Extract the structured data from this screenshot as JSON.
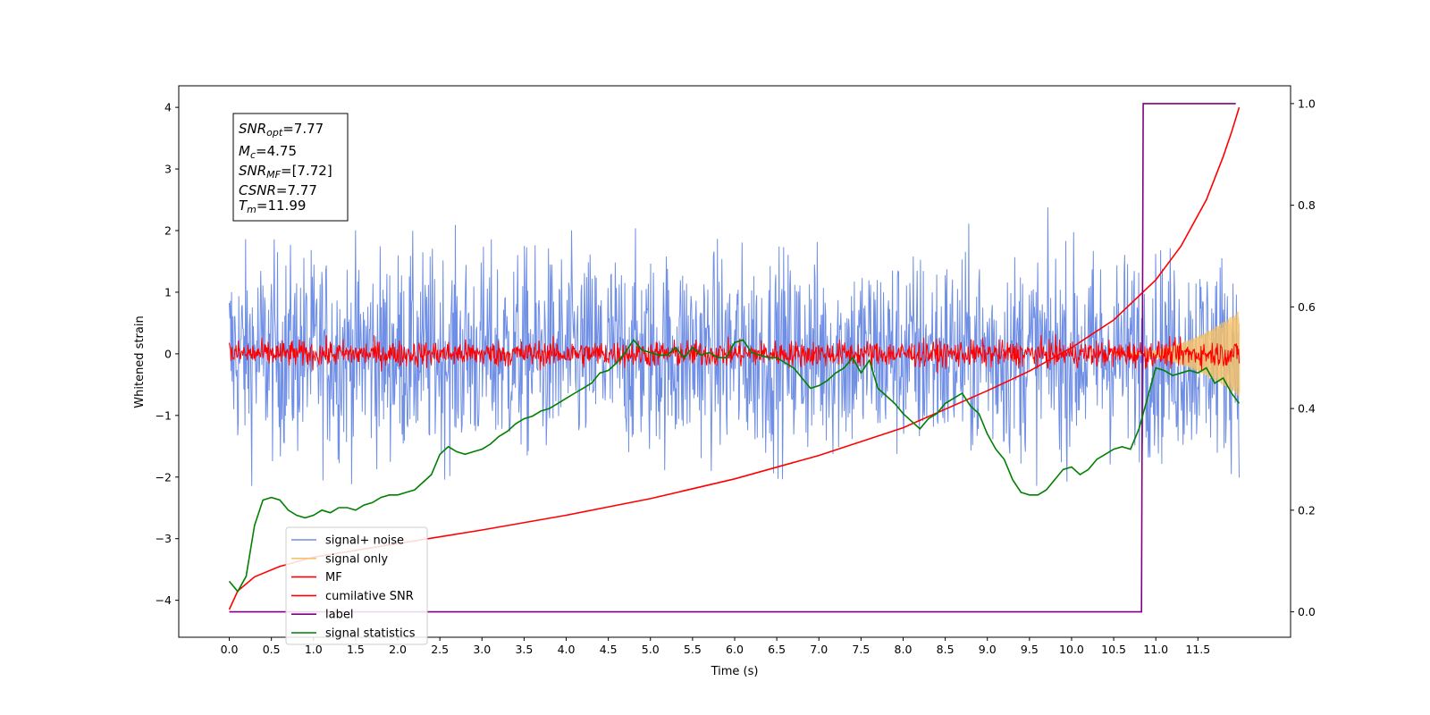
{
  "chart_data": {
    "type": "line",
    "xlabel": "Time (s)",
    "ylabel": "Whitened strain",
    "xlim": [
      -0.6,
      12.6
    ],
    "ylim": [
      -4.6,
      4.35
    ],
    "y2lim": [
      -0.05,
      1.035
    ],
    "x_ticks": [
      "0.0",
      "0.5",
      "1.0",
      "1.5",
      "2.0",
      "2.5",
      "3.0",
      "3.5",
      "4.0",
      "4.5",
      "5.0",
      "5.5",
      "6.0",
      "6.5",
      "7.0",
      "7.5",
      "8.0",
      "8.5",
      "9.0",
      "9.5",
      "10.0",
      "10.5",
      "11.0",
      "11.5"
    ],
    "y_ticks": [
      "−4",
      "−3",
      "−2",
      "−1",
      "0",
      "1",
      "2",
      "3",
      "4"
    ],
    "y2_ticks": [
      "0.0",
      "0.2",
      "0.4",
      "0.6",
      "0.8",
      "1.0"
    ],
    "annotation": {
      "lines": [
        {
          "base": "SNR",
          "sub": "opt",
          "value": "=7.77"
        },
        {
          "base": "M",
          "sub": "c",
          "value": "=4.75"
        },
        {
          "base": "SNR",
          "sub": "MF",
          "value": "=[7.72]"
        },
        {
          "base": "CSNR",
          "sub": "",
          "value": "=7.77"
        },
        {
          "base": "T",
          "sub": "m",
          "value": "=11.99"
        }
      ]
    },
    "series": [
      {
        "name": "signal+ noise",
        "color": "#6f8ee5",
        "axis": "left",
        "kind": "noise",
        "center": 0.0,
        "amplitude": 1.15,
        "x_range": [
          0.0,
          11.99
        ]
      },
      {
        "name": "signal only",
        "color": "#f5c26b",
        "axis": "left",
        "kind": "chirp",
        "x_range": [
          10.5,
          11.99
        ],
        "amplitude_end": 0.7
      },
      {
        "name": "MF",
        "color": "#ff0000",
        "axis": "left",
        "kind": "noise",
        "center": 0.0,
        "amplitude": 0.15,
        "x_range": [
          0.0,
          11.99
        ]
      },
      {
        "name": "cumilative SNR",
        "color": "#ff0000",
        "axis": "left",
        "x": [
          0.0,
          0.1,
          0.3,
          0.6,
          1.0,
          2.0,
          3.0,
          4.0,
          5.0,
          6.0,
          7.0,
          8.0,
          9.0,
          9.5,
          10.0,
          10.5,
          11.0,
          11.3,
          11.6,
          11.8,
          11.9,
          11.99
        ],
        "y": [
          -4.15,
          -3.85,
          -3.62,
          -3.45,
          -3.3,
          -3.08,
          -2.86,
          -2.62,
          -2.35,
          -2.03,
          -1.65,
          -1.2,
          -0.6,
          -0.28,
          0.1,
          0.55,
          1.2,
          1.75,
          2.5,
          3.2,
          3.6,
          4.0
        ]
      },
      {
        "name": "label",
        "color": "#800080",
        "axis": "right",
        "x": [
          0.0,
          10.83,
          10.85,
          11.95
        ],
        "y": [
          0.0,
          0.0,
          1.0,
          1.0
        ]
      },
      {
        "name": "signal statistics",
        "color": "#008000",
        "axis": "right",
        "x": [
          0.0,
          0.1,
          0.2,
          0.3,
          0.4,
          0.5,
          0.6,
          0.7,
          0.8,
          0.9,
          1.0,
          1.1,
          1.2,
          1.3,
          1.4,
          1.5,
          1.6,
          1.7,
          1.8,
          1.9,
          2.0,
          2.1,
          2.2,
          2.3,
          2.4,
          2.5,
          2.6,
          2.7,
          2.8,
          2.9,
          3.0,
          3.1,
          3.2,
          3.3,
          3.4,
          3.5,
          3.6,
          3.7,
          3.8,
          3.9,
          4.0,
          4.1,
          4.2,
          4.3,
          4.4,
          4.5,
          4.6,
          4.7,
          4.8,
          4.9,
          5.0,
          5.1,
          5.2,
          5.3,
          5.4,
          5.5,
          5.6,
          5.7,
          5.8,
          5.9,
          6.0,
          6.1,
          6.2,
          6.3,
          6.4,
          6.5,
          6.6,
          6.7,
          6.8,
          6.9,
          7.0,
          7.1,
          7.2,
          7.3,
          7.4,
          7.5,
          7.6,
          7.7,
          7.8,
          7.9,
          8.0,
          8.1,
          8.2,
          8.3,
          8.4,
          8.5,
          8.6,
          8.7,
          8.8,
          8.9,
          9.0,
          9.1,
          9.2,
          9.3,
          9.4,
          9.5,
          9.6,
          9.7,
          9.8,
          9.9,
          10.0,
          10.1,
          10.2,
          10.3,
          10.4,
          10.5,
          10.6,
          10.7,
          10.8,
          10.9,
          11.0,
          11.1,
          11.2,
          11.3,
          11.4,
          11.5,
          11.6,
          11.7,
          11.8,
          11.9,
          11.99
        ],
        "y": [
          0.06,
          0.04,
          0.07,
          0.17,
          0.22,
          0.225,
          0.22,
          0.2,
          0.19,
          0.185,
          0.19,
          0.2,
          0.195,
          0.205,
          0.205,
          0.2,
          0.21,
          0.215,
          0.225,
          0.23,
          0.23,
          0.235,
          0.24,
          0.255,
          0.27,
          0.31,
          0.325,
          0.315,
          0.31,
          0.315,
          0.32,
          0.33,
          0.345,
          0.355,
          0.37,
          0.38,
          0.385,
          0.395,
          0.4,
          0.41,
          0.42,
          0.43,
          0.44,
          0.45,
          0.47,
          0.475,
          0.49,
          0.51,
          0.535,
          0.515,
          0.51,
          0.505,
          0.505,
          0.52,
          0.5,
          0.52,
          0.505,
          0.51,
          0.5,
          0.5,
          0.53,
          0.535,
          0.51,
          0.505,
          0.5,
          0.5,
          0.49,
          0.48,
          0.46,
          0.44,
          0.445,
          0.455,
          0.47,
          0.48,
          0.5,
          0.47,
          0.495,
          0.44,
          0.425,
          0.41,
          0.39,
          0.375,
          0.36,
          0.38,
          0.39,
          0.41,
          0.42,
          0.43,
          0.405,
          0.39,
          0.35,
          0.32,
          0.3,
          0.26,
          0.235,
          0.23,
          0.23,
          0.24,
          0.26,
          0.28,
          0.285,
          0.27,
          0.28,
          0.3,
          0.31,
          0.32,
          0.325,
          0.32,
          0.36,
          0.42,
          0.48,
          0.475,
          0.465,
          0.47,
          0.475,
          0.47,
          0.48,
          0.45,
          0.46,
          0.43,
          0.41
        ]
      }
    ],
    "legend": {
      "position": "lower-left",
      "entries": [
        "signal+ noise",
        "signal only",
        "MF",
        "cumilative SNR",
        "label",
        "signal statistics"
      ]
    }
  }
}
